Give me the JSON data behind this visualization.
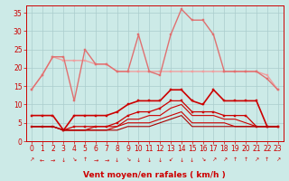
{
  "x": [
    0,
    1,
    2,
    3,
    4,
    5,
    6,
    7,
    8,
    9,
    10,
    11,
    12,
    13,
    14,
    15,
    16,
    17,
    18,
    19,
    20,
    21,
    22,
    23
  ],
  "series": [
    {
      "name": "rafales_flat",
      "color": "#f0a0a0",
      "lw": 1.0,
      "marker": "s",
      "ms": 1.5,
      "y": [
        14,
        18,
        23,
        22,
        22,
        22,
        21,
        21,
        19,
        19,
        19,
        19,
        19,
        19,
        19,
        19,
        19,
        19,
        19,
        19,
        19,
        19,
        18,
        14
      ]
    },
    {
      "name": "rafales_peak",
      "color": "#e07070",
      "lw": 1.0,
      "marker": "s",
      "ms": 1.5,
      "y": [
        14,
        18,
        23,
        23,
        11,
        25,
        21,
        21,
        19,
        19,
        29,
        19,
        18,
        29,
        36,
        33,
        33,
        29,
        19,
        19,
        19,
        19,
        17,
        14
      ]
    },
    {
      "name": "vent_moyen",
      "color": "#cc0000",
      "lw": 1.2,
      "marker": "s",
      "ms": 2.0,
      "y": [
        7,
        7,
        7,
        3,
        7,
        7,
        7,
        7,
        8,
        10,
        11,
        11,
        11,
        14,
        14,
        11,
        10,
        14,
        11,
        11,
        11,
        11,
        4,
        4
      ]
    },
    {
      "name": "vent_med",
      "color": "#cc0000",
      "lw": 0.9,
      "marker": "s",
      "ms": 1.5,
      "y": [
        4,
        4,
        4,
        3,
        4,
        4,
        4,
        4,
        5,
        7,
        8,
        8,
        9,
        11,
        11,
        8,
        8,
        8,
        7,
        7,
        7,
        4,
        4,
        4
      ]
    },
    {
      "name": "vent_low1",
      "color": "#cc0000",
      "lw": 0.8,
      "marker": null,
      "ms": 0,
      "y": [
        4,
        4,
        4,
        3,
        3,
        3,
        4,
        4,
        4,
        6,
        6,
        7,
        7,
        9,
        10,
        7,
        7,
        7,
        6,
        6,
        5,
        4,
        4,
        4
      ]
    },
    {
      "name": "vent_low2",
      "color": "#cc0000",
      "lw": 0.8,
      "marker": null,
      "ms": 0,
      "y": [
        4,
        4,
        4,
        3,
        3,
        3,
        3,
        3,
        4,
        5,
        5,
        5,
        6,
        7,
        8,
        5,
        5,
        5,
        5,
        4,
        4,
        4,
        4,
        4
      ]
    },
    {
      "name": "vent_base",
      "color": "#aa0000",
      "lw": 0.8,
      "marker": null,
      "ms": 0,
      "y": [
        4,
        4,
        4,
        3,
        3,
        3,
        3,
        3,
        3,
        4,
        4,
        4,
        5,
        6,
        7,
        4,
        4,
        4,
        4,
        4,
        4,
        4,
        4,
        4
      ]
    }
  ],
  "xlabel": "Vent moyen/en rafales ( km/h )",
  "ylabel_ticks": [
    0,
    5,
    10,
    15,
    20,
    25,
    30,
    35
  ],
  "xlim": [
    -0.5,
    23.5
  ],
  "ylim": [
    0,
    37
  ],
  "bg_color": "#cceae7",
  "grid_color": "#aacccc",
  "tick_color": "#cc0000",
  "label_color": "#cc0000",
  "xlabel_fontsize": 6.5,
  "tick_fontsize": 5.5,
  "arrow_row": [
    "↗",
    "←",
    "→",
    "↓",
    "↘",
    "↑",
    "→",
    "→",
    "↓",
    "↘",
    "↓",
    "↓",
    "↓",
    "↙",
    "↓",
    "↓",
    "↘",
    "↗",
    "↗",
    "↑",
    "↑",
    "↗",
    "↑",
    "↗"
  ]
}
